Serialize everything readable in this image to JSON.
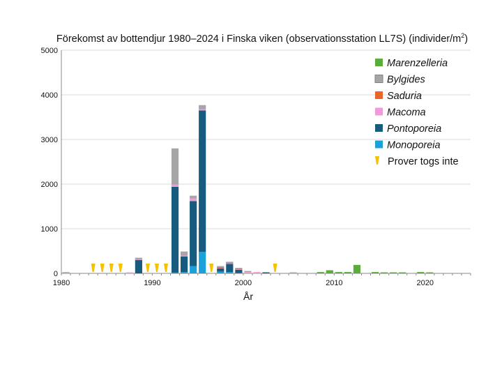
{
  "chart_data": {
    "type": "bar",
    "stacked": true,
    "title": "Förekomst av bottendjur 1980–2024 i Finska viken (observationsstation LL7S) (individer/m",
    "title_sup": "2",
    "title_close": ")",
    "xlabel": "År",
    "ylabel": "",
    "xlim": [
      1980,
      2025
    ],
    "ylim": [
      0,
      5000
    ],
    "yticks": [
      "0",
      "1000",
      "2000",
      "3000",
      "4000",
      "5000"
    ],
    "xticks": [
      "1980",
      "1990",
      "2000",
      "2010",
      "2020"
    ],
    "grid": true,
    "legend_position": "top-right",
    "series": [
      {
        "name": "Monoporeia",
        "color": "#1ba1d9",
        "values": {
          "1992": 20,
          "1993": 30,
          "1994": 160,
          "1995": 480,
          "1997": 40,
          "1998": 30,
          "1999": 10
        }
      },
      {
        "name": "Pontoporeia",
        "color": "#175b7e",
        "values": {
          "1988": 300,
          "1992": 1920,
          "1993": 350,
          "1994": 1460,
          "1995": 3170,
          "1997": 70,
          "1998": 180,
          "1999": 70,
          "2002": 20
        }
      },
      {
        "name": "Macoma",
        "color": "#f09ad6",
        "values": {
          "1980": 5,
          "1987": 20,
          "1988": 10,
          "1992": 50,
          "1993": 20,
          "1994": 60,
          "1995": 30,
          "1997": 10,
          "1998": 10,
          "1999": 10,
          "2000": 30,
          "2001": 30
        }
      },
      {
        "name": "Saduria",
        "color": "#e8662a",
        "values": {
          "1997": 20,
          "1998": 10,
          "1999": 10
        }
      },
      {
        "name": "Bylgides",
        "color": "#a6a6a6",
        "values": {
          "1980": 10,
          "1988": 40,
          "1992": 810,
          "1993": 90,
          "1994": 60,
          "1995": 90,
          "1997": 10,
          "1998": 30,
          "1999": 10,
          "2000": 10,
          "2005": 10
        }
      },
      {
        "name": "Marenzelleria",
        "color": "#5aad3a",
        "values": {
          "2008": 30,
          "2009": 70,
          "2010": 30,
          "2011": 30,
          "2012": 190,
          "2014": 30,
          "2015": 20,
          "2016": 20,
          "2017": 20,
          "2019": 30,
          "2020": 20
        }
      }
    ],
    "no_sample": {
      "name": "Prover togs inte",
      "color": "#f6c200",
      "years": [
        1983,
        1984,
        1985,
        1986,
        1989,
        1990,
        1991,
        1996,
        2003
      ]
    },
    "legend_order": [
      "Marenzelleria",
      "Bylgides",
      "Saduria",
      "Macoma",
      "Pontoporeia",
      "Monoporeia",
      "Prover togs inte"
    ]
  }
}
